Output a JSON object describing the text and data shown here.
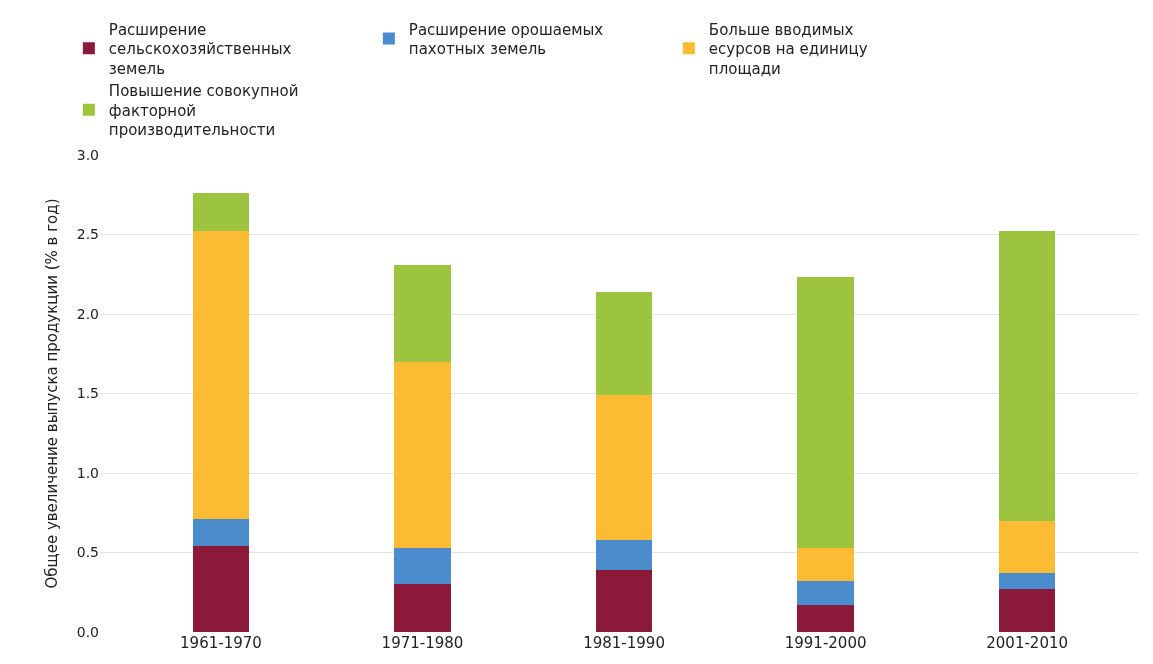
{
  "chart_data": {
    "type": "bar",
    "stacked": true,
    "ylabel": "Общее увеличение выпуска продукции (% в год)",
    "categories": [
      "1961-1970",
      "1971-1980",
      "1981-1990",
      "1991-2000",
      "2001-2010"
    ],
    "series": [
      {
        "name": "Расширение сельскохозяйственных земель",
        "color": "#8b1a3a",
        "values": [
          0.54,
          0.3,
          0.39,
          0.17,
          0.27
        ]
      },
      {
        "name": "Расширение орошаемых пахотных земель",
        "color": "#4a8ccc",
        "values": [
          0.17,
          0.23,
          0.19,
          0.15,
          0.1
        ]
      },
      {
        "name": "Больше вводимых есурсов на единицу площади",
        "color": "#fbbc34",
        "values": [
          1.81,
          1.17,
          0.91,
          0.21,
          0.33
        ]
      },
      {
        "name": "Повышение совокупной факторной производительности",
        "color": "#9dc43f",
        "values": [
          0.24,
          0.61,
          0.65,
          1.7,
          1.82
        ]
      }
    ],
    "ylim": [
      0,
      3.0
    ],
    "yticks": [
      {
        "value": 0,
        "label": "0.0"
      },
      {
        "value": 0.5,
        "label": "0.5"
      },
      {
        "value": 1,
        "label": "1.0"
      },
      {
        "value": 1.5,
        "label": "1.5"
      },
      {
        "value": 2,
        "label": "2.0"
      },
      {
        "value": 2.5,
        "label": "2.5"
      },
      {
        "value": 3,
        "label": "3.0"
      }
    ],
    "grid": "y",
    "legend": "top"
  }
}
